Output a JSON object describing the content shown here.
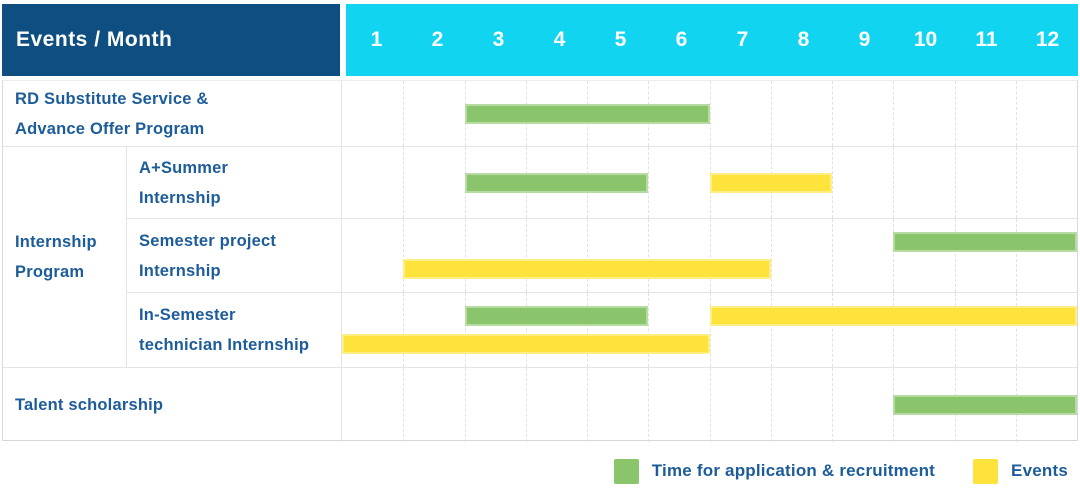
{
  "header": {
    "title": "Events / Month",
    "months": [
      "1",
      "2",
      "3",
      "4",
      "5",
      "6",
      "7",
      "8",
      "9",
      "10",
      "11",
      "12"
    ]
  },
  "colors": {
    "header_bg": "#0E4E81",
    "months_bg": "#11D5F0",
    "green": "#8BC56B",
    "yellow": "#FFE33D",
    "label_text": "#1D5C9A"
  },
  "legend": [
    {
      "color": "green",
      "label": "Time for application & recruitment"
    },
    {
      "color": "yellow",
      "label": "Events"
    }
  ],
  "chart_data": {
    "type": "gantt",
    "title": "Events / Month",
    "x_axis": {
      "label": "Month",
      "ticks": [
        "1",
        "2",
        "3",
        "4",
        "5",
        "6",
        "7",
        "8",
        "9",
        "10",
        "11",
        "12"
      ],
      "range": [
        1,
        12
      ]
    },
    "series_legend": [
      {
        "key": "green",
        "label": "Time for application & recruitment",
        "color": "#8BC56B"
      },
      {
        "key": "yellow",
        "label": "Events",
        "color": "#FFE33D"
      }
    ],
    "group": {
      "label": "Internship Program",
      "line1": "Internship",
      "line2": "Program"
    },
    "rows": [
      {
        "label": "RD Substitute Service & Advance Offer Program",
        "line1": "RD Substitute Service &",
        "line2": "Advance Offer Program",
        "group": "",
        "bars": [
          {
            "series": "Time for application & recruitment",
            "color": "green",
            "start_month": 3,
            "end_month": 6,
            "lane": "center"
          }
        ]
      },
      {
        "label": "A+Summer Internship",
        "line1": "A+Summer",
        "line2": "Internship",
        "group": "Internship Program",
        "bars": [
          {
            "series": "Time for application & recruitment",
            "color": "green",
            "start_month": 3,
            "end_month": 5,
            "lane": "center"
          },
          {
            "series": "Events",
            "color": "yellow",
            "start_month": 7,
            "end_month": 8,
            "lane": "center"
          }
        ]
      },
      {
        "label": "Semester project Internship",
        "line1": "Semester project",
        "line2": "Internship",
        "group": "Internship Program",
        "bars": [
          {
            "series": "Time for application & recruitment",
            "color": "green",
            "start_month": 10,
            "end_month": 12,
            "lane": "top"
          },
          {
            "series": "Events",
            "color": "yellow",
            "start_month": 2,
            "end_month": 7,
            "lane": "bottom"
          }
        ]
      },
      {
        "label": "In-Semester technician Internship",
        "line1": "In-Semester",
        "line2": "technician Internship",
        "group": "Internship Program",
        "bars": [
          {
            "series": "Time for application & recruitment",
            "color": "green",
            "start_month": 3,
            "end_month": 5,
            "lane": "top"
          },
          {
            "series": "Events",
            "color": "yellow",
            "start_month": 7,
            "end_month": 12,
            "lane": "top"
          },
          {
            "series": "Events",
            "color": "yellow",
            "start_month": 1,
            "end_month": 6,
            "lane": "bottom"
          }
        ]
      },
      {
        "label": "Talent scholarship",
        "line1": "Talent scholarship",
        "line2": "",
        "group": "",
        "bars": [
          {
            "series": "Time for application & recruitment",
            "color": "green",
            "start_month": 10,
            "end_month": 12,
            "lane": "center"
          }
        ]
      }
    ]
  }
}
